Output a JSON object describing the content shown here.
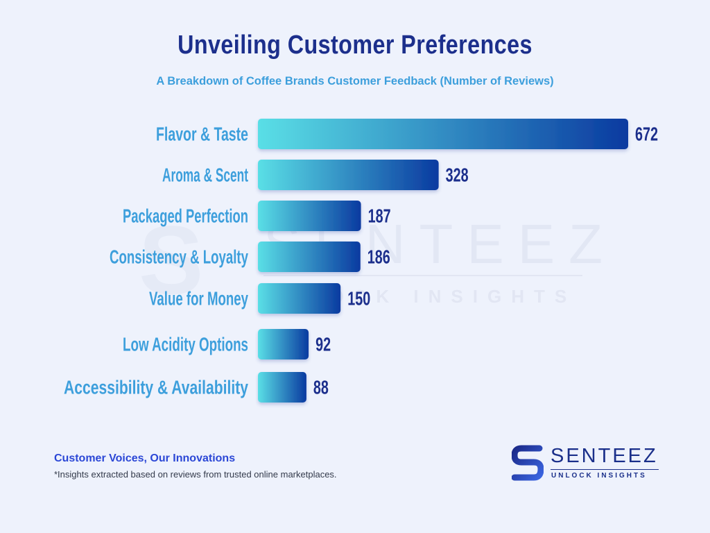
{
  "chart_data": {
    "type": "bar",
    "orientation": "horizontal",
    "title": "Unveiling Customer Preferences",
    "subtitle": "A Breakdown of Coffee Brands Customer Feedback (Number of Reviews)",
    "categories": [
      "Flavor & Taste",
      "Aroma & Scent",
      "Packaged Perfection",
      "Consistency & Loyalty",
      "Value for Money",
      "Low Acidity Options",
      "Accessibility & Availability"
    ],
    "values": [
      672,
      328,
      187,
      186,
      150,
      92,
      88
    ],
    "data_labels": [
      "672",
      "328",
      "187",
      "186",
      "150",
      "92",
      "88"
    ],
    "xlim": [
      0,
      672
    ],
    "grid": false,
    "legend": "none",
    "colors": {
      "bar_start": "#5adfe6",
      "bar_end": "#0a3aa0",
      "category_label": "#3d9fdc",
      "value_label": "#1c2f8c"
    }
  },
  "footer": {
    "tagline": "Customer Voices, Our Innovations",
    "note": "*Insights extracted based on reviews from trusted online marketplaces."
  },
  "logo": {
    "name": "SENTEEZ",
    "tagline": "UNLOCK INSIGHTS",
    "icon": "senteez-s-logo-icon"
  },
  "watermark": {
    "name": "SENTEEZ",
    "tagline": "UNLOCK INSIGHTS"
  }
}
